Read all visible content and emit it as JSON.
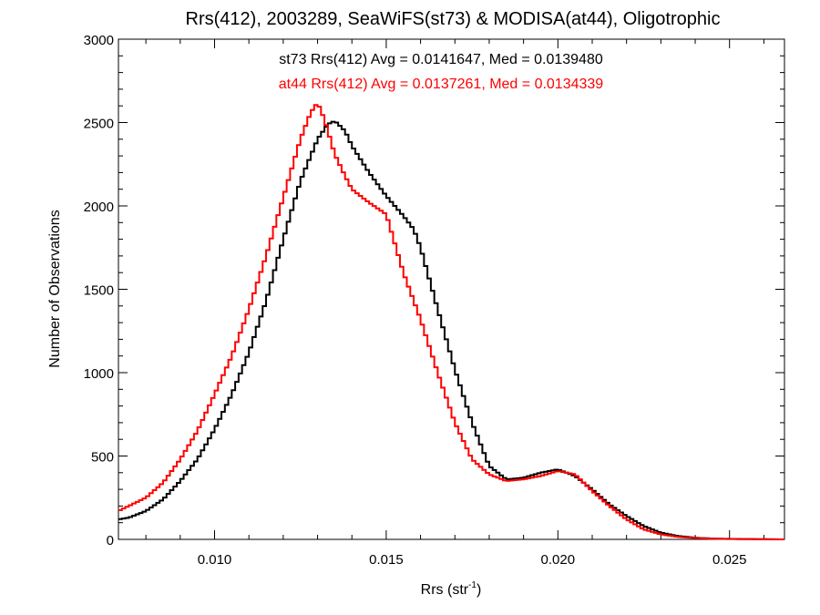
{
  "chart_data": {
    "type": "line",
    "title": "Rrs(412), 2003289, SeaWiFS(st73) & MODISA(at44), Oligotrophic",
    "xlabel_main": "Rrs (str",
    "xlabel_sup": "-1",
    "xlabel_tail": ")",
    "ylabel": "Number of Observations",
    "xlim": [
      0.0072,
      0.0266
    ],
    "ylim": [
      0,
      3000
    ],
    "x_ticks": [
      0.01,
      0.015,
      0.02,
      0.025
    ],
    "x_tick_labels": [
      "0.010",
      "0.015",
      "0.020",
      "0.025"
    ],
    "y_ticks": [
      0,
      500,
      1000,
      1500,
      2000,
      2500,
      3000
    ],
    "y_tick_labels": [
      "0",
      "500",
      "1000",
      "1500",
      "2000",
      "2500",
      "3000"
    ],
    "grid": false,
    "step_style": true,
    "annotations": [
      {
        "text": "st73 Rrs(412) Avg = 0.0141647, Med = 0.0139480",
        "color": "#000000"
      },
      {
        "text": "at44 Rrs(412) Avg = 0.0137261, Med = 0.0134339",
        "color": "#ff0000"
      }
    ],
    "series": [
      {
        "color": "#000000",
        "x": [
          0.0072,
          0.0075,
          0.008,
          0.0085,
          0.009,
          0.0095,
          0.01,
          0.0105,
          0.011,
          0.0115,
          0.012,
          0.0125,
          0.013,
          0.0133,
          0.0135,
          0.0138,
          0.014,
          0.0145,
          0.015,
          0.0155,
          0.0158,
          0.016,
          0.0165,
          0.017,
          0.0175,
          0.018,
          0.0185,
          0.019,
          0.0195,
          0.02,
          0.0205,
          0.021,
          0.0215,
          0.022,
          0.0225,
          0.023,
          0.0235,
          0.024,
          0.0245,
          0.025,
          0.0266
        ],
        "values": [
          120,
          130,
          170,
          240,
          350,
          480,
          660,
          870,
          1120,
          1430,
          1800,
          2150,
          2400,
          2490,
          2510,
          2450,
          2360,
          2200,
          2060,
          1940,
          1860,
          1750,
          1380,
          1020,
          700,
          440,
          360,
          370,
          400,
          420,
          380,
          300,
          210,
          140,
          80,
          40,
          20,
          10,
          5,
          3,
          0
        ]
      },
      {
        "color": "#ff0000",
        "x": [
          0.0072,
          0.0075,
          0.008,
          0.0085,
          0.009,
          0.0095,
          0.01,
          0.0105,
          0.011,
          0.0115,
          0.012,
          0.0125,
          0.0128,
          0.013,
          0.0132,
          0.0135,
          0.0138,
          0.014,
          0.0145,
          0.015,
          0.0155,
          0.016,
          0.0165,
          0.017,
          0.0175,
          0.018,
          0.0185,
          0.019,
          0.0195,
          0.02,
          0.0205,
          0.021,
          0.0215,
          0.022,
          0.0225,
          0.023,
          0.0235,
          0.024,
          0.0245,
          0.025,
          0.0266
        ],
        "values": [
          170,
          200,
          250,
          340,
          480,
          650,
          870,
          1100,
          1380,
          1700,
          2050,
          2400,
          2560,
          2620,
          2520,
          2310,
          2180,
          2100,
          2020,
          1950,
          1600,
          1320,
          1000,
          700,
          480,
          390,
          350,
          360,
          380,
          410,
          390,
          290,
          200,
          120,
          60,
          30,
          15,
          8,
          4,
          2,
          0
        ]
      }
    ]
  }
}
